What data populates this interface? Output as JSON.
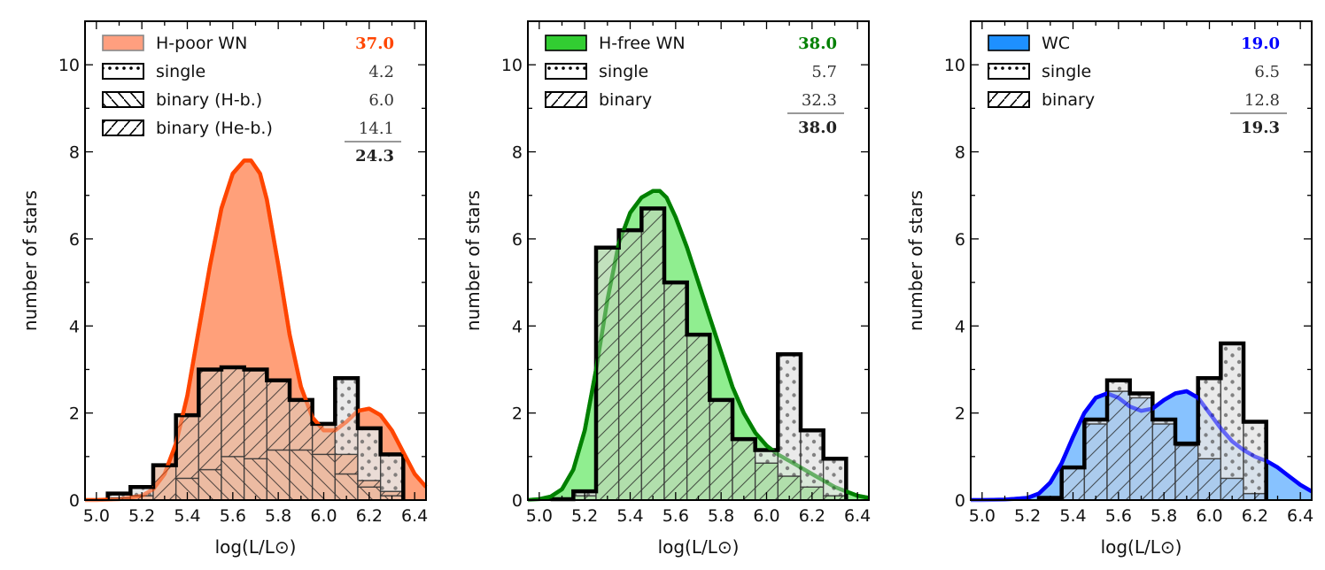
{
  "chart_data": [
    {
      "type": "bar",
      "title": "",
      "xlabel": "log(L/L⊙)",
      "ylabel": "number of stars",
      "xlim": [
        4.95,
        6.45
      ],
      "ylim": [
        0,
        11
      ],
      "xticks": [
        "5.0",
        "5.2",
        "5.4",
        "5.6",
        "5.8",
        "6.0",
        "6.2",
        "6.4"
      ],
      "xtick_values": [
        5.0,
        5.2,
        5.4,
        5.6,
        5.8,
        6.0,
        6.2,
        6.4
      ],
      "yticks": [
        "0",
        "2",
        "4",
        "6",
        "8",
        "10"
      ],
      "ytick_values": [
        0,
        2,
        4,
        6,
        8,
        10
      ],
      "bin_width": 0.1,
      "bin_centers": [
        5.1,
        5.2,
        5.3,
        5.4,
        5.5,
        5.6,
        5.7,
        5.8,
        5.9,
        6.0,
        6.1,
        6.2,
        6.3
      ],
      "kde": {
        "name": "H-poor WN",
        "color": "#ff4500",
        "fill": "#ffa07a",
        "x": [
          4.95,
          5.0,
          5.1,
          5.2,
          5.25,
          5.3,
          5.35,
          5.4,
          5.45,
          5.5,
          5.55,
          5.6,
          5.65,
          5.68,
          5.72,
          5.75,
          5.8,
          5.85,
          5.9,
          5.95,
          6.0,
          6.05,
          6.1,
          6.15,
          6.2,
          6.25,
          6.3,
          6.35,
          6.4,
          6.45
        ],
        "y": [
          0.0,
          0.0,
          0.02,
          0.1,
          0.25,
          0.6,
          1.3,
          2.4,
          3.9,
          5.4,
          6.7,
          7.5,
          7.8,
          7.8,
          7.5,
          6.9,
          5.4,
          3.8,
          2.6,
          1.9,
          1.6,
          1.6,
          1.8,
          2.05,
          2.1,
          1.95,
          1.6,
          1.1,
          0.6,
          0.3
        ]
      },
      "series": [
        {
          "name": "binary (H-b.)",
          "hatch": "\\\\",
          "values": [
            0.0,
            0.0,
            0.0,
            0.5,
            0.7,
            1.0,
            0.95,
            1.15,
            1.15,
            1.05,
            0.6,
            0.3,
            0.1
          ]
        },
        {
          "name": "binary (He-b.)",
          "hatch": "//",
          "values": [
            0.05,
            0.1,
            0.8,
            1.45,
            2.3,
            2.05,
            2.05,
            1.6,
            1.15,
            0.7,
            0.45,
            0.15,
            0.1
          ]
        },
        {
          "name": "single",
          "hatch": "..",
          "values": [
            0.1,
            0.2,
            0.0,
            0.0,
            0.0,
            0.0,
            0.0,
            0.0,
            0.0,
            0.0,
            1.75,
            1.2,
            0.85
          ]
        }
      ],
      "totals": [
        0.15,
        0.3,
        0.8,
        1.95,
        3.0,
        3.05,
        3.0,
        2.75,
        2.3,
        1.75,
        2.8,
        1.65,
        1.05
      ],
      "legend": {
        "placement": "top-left",
        "entries": [
          {
            "label": "H-poor WN",
            "value": "37.0",
            "kind": "kde"
          },
          {
            "label": "single",
            "value": "4.2",
            "kind": "dots"
          },
          {
            "label": "binary (H-b.)",
            "value": "6.0",
            "kind": "back"
          },
          {
            "label": "binary (He-b.)",
            "value": "14.1",
            "kind": "fwd"
          }
        ],
        "sum": "24.3"
      }
    },
    {
      "type": "bar",
      "title": "",
      "xlabel": "log(L/L⊙)",
      "ylabel": "number of stars",
      "xlim": [
        4.95,
        6.45
      ],
      "ylim": [
        0,
        11
      ],
      "xticks": [
        "5.0",
        "5.2",
        "5.4",
        "5.6",
        "5.8",
        "6.0",
        "6.2",
        "6.4"
      ],
      "xtick_values": [
        5.0,
        5.2,
        5.4,
        5.6,
        5.8,
        6.0,
        6.2,
        6.4
      ],
      "yticks": [
        "0",
        "2",
        "4",
        "6",
        "8",
        "10"
      ],
      "ytick_values": [
        0,
        2,
        4,
        6,
        8,
        10
      ],
      "bin_width": 0.1,
      "bin_centers": [
        5.1,
        5.2,
        5.3,
        5.4,
        5.5,
        5.6,
        5.7,
        5.8,
        5.9,
        6.0,
        6.1,
        6.2,
        6.3
      ],
      "kde": {
        "name": "H-free WN",
        "color": "#008000",
        "fill": "#90ee90",
        "x": [
          4.95,
          5.0,
          5.05,
          5.1,
          5.15,
          5.2,
          5.25,
          5.3,
          5.35,
          5.4,
          5.45,
          5.5,
          5.53,
          5.56,
          5.6,
          5.65,
          5.7,
          5.75,
          5.8,
          5.85,
          5.9,
          5.95,
          6.0,
          6.05,
          6.1,
          6.15,
          6.2,
          6.25,
          6.3,
          6.35,
          6.4,
          6.45
        ],
        "y": [
          0.0,
          0.02,
          0.08,
          0.25,
          0.7,
          1.6,
          3.0,
          4.6,
          5.9,
          6.6,
          6.95,
          7.1,
          7.1,
          6.95,
          6.5,
          5.8,
          5.0,
          4.2,
          3.4,
          2.6,
          2.0,
          1.55,
          1.25,
          1.05,
          0.9,
          0.75,
          0.6,
          0.45,
          0.3,
          0.2,
          0.1,
          0.05
        ]
      },
      "series": [
        {
          "name": "binary",
          "hatch": "//",
          "values": [
            0.02,
            0.1,
            5.8,
            6.2,
            6.7,
            5.0,
            3.8,
            2.3,
            1.4,
            0.85,
            0.55,
            0.3,
            0.1
          ]
        },
        {
          "name": "single",
          "hatch": "..",
          "values": [
            0.0,
            0.1,
            0.0,
            0.0,
            0.0,
            0.0,
            0.0,
            0.0,
            0.0,
            0.3,
            2.8,
            1.3,
            0.85
          ]
        }
      ],
      "totals": [
        0.02,
        0.2,
        5.8,
        6.2,
        6.7,
        5.0,
        3.8,
        2.3,
        1.4,
        1.15,
        3.35,
        1.6,
        0.95
      ],
      "legend": {
        "placement": "top-left",
        "entries": [
          {
            "label": "H-free WN",
            "value": "38.0",
            "kind": "kde"
          },
          {
            "label": "single",
            "value": "5.7",
            "kind": "dots"
          },
          {
            "label": "binary",
            "value": "32.3",
            "kind": "fwd"
          }
        ],
        "sum": "38.0"
      }
    },
    {
      "type": "bar",
      "title": "",
      "xlabel": "log(L/L⊙)",
      "ylabel": "number of stars",
      "xlim": [
        4.95,
        6.45
      ],
      "ylim": [
        0,
        11
      ],
      "xticks": [
        "5.0",
        "5.2",
        "5.4",
        "5.6",
        "5.8",
        "6.0",
        "6.2",
        "6.4"
      ],
      "xtick_values": [
        5.0,
        5.2,
        5.4,
        5.6,
        5.8,
        6.0,
        6.2,
        6.4
      ],
      "yticks": [
        "0",
        "2",
        "4",
        "6",
        "8",
        "10"
      ],
      "ytick_values": [
        0,
        2,
        4,
        6,
        8,
        10
      ],
      "bin_width": 0.1,
      "bin_centers": [
        5.3,
        5.4,
        5.5,
        5.6,
        5.7,
        5.8,
        5.9,
        6.0,
        6.1,
        6.2
      ],
      "kde": {
        "name": "WC",
        "color": "#0000ff",
        "fill": "#87c2ff",
        "x": [
          4.95,
          5.0,
          5.1,
          5.2,
          5.25,
          5.3,
          5.35,
          5.4,
          5.45,
          5.5,
          5.55,
          5.6,
          5.65,
          5.7,
          5.75,
          5.8,
          5.85,
          5.9,
          5.95,
          6.0,
          6.05,
          6.1,
          6.15,
          6.2,
          6.25,
          6.3,
          6.35,
          6.4,
          6.45
        ],
        "y": [
          0.0,
          0.0,
          0.01,
          0.05,
          0.15,
          0.4,
          0.85,
          1.45,
          2.0,
          2.35,
          2.45,
          2.35,
          2.15,
          2.05,
          2.1,
          2.3,
          2.45,
          2.5,
          2.35,
          2.0,
          1.65,
          1.35,
          1.15,
          1.0,
          0.9,
          0.75,
          0.55,
          0.35,
          0.2
        ]
      },
      "series": [
        {
          "name": "binary",
          "hatch": "//",
          "values": [
            0.0,
            0.75,
            1.75,
            2.5,
            2.35,
            1.75,
            1.25,
            0.95,
            0.5,
            0.15
          ]
        },
        {
          "name": "single",
          "hatch": "..",
          "values": [
            0.05,
            0.0,
            0.1,
            0.25,
            0.1,
            0.1,
            0.05,
            1.85,
            3.1,
            1.65
          ]
        }
      ],
      "totals": [
        0.05,
        0.75,
        1.85,
        2.75,
        2.45,
        1.85,
        1.3,
        2.8,
        3.6,
        1.8
      ],
      "legend": {
        "placement": "top-left",
        "entries": [
          {
            "label": "WC",
            "value": "19.0",
            "kind": "kde"
          },
          {
            "label": "single",
            "value": "6.5",
            "kind": "dots"
          },
          {
            "label": "binary",
            "value": "12.8",
            "kind": "fwd"
          }
        ],
        "sum": "19.3"
      }
    }
  ]
}
